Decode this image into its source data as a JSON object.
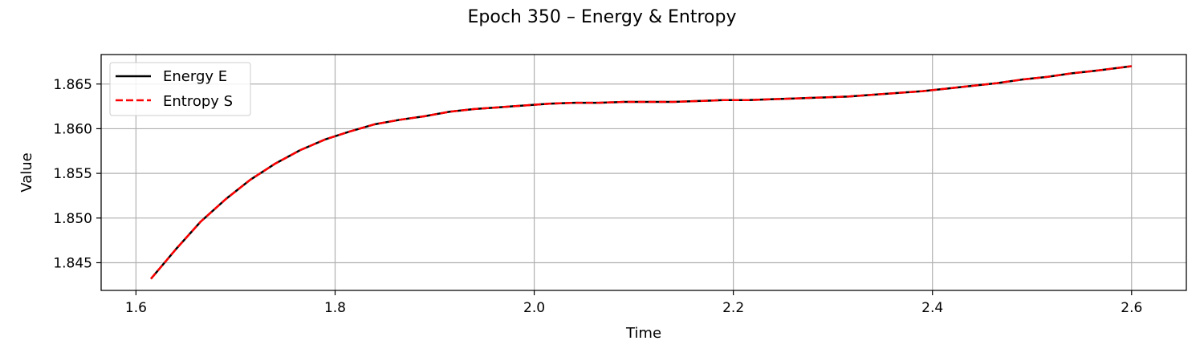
{
  "chart_data": {
    "type": "line",
    "title": "Epoch 350 – Energy & Entropy",
    "xlabel": "Time",
    "ylabel": "Value",
    "xlim": [
      1.565,
      2.655
    ],
    "ylim": [
      1.8419,
      1.8683
    ],
    "xticks": [
      1.6,
      1.8,
      2.0,
      2.2,
      2.4,
      2.6
    ],
    "xtick_labels": [
      "1.6",
      "1.8",
      "2.0",
      "2.2",
      "2.4",
      "2.6"
    ],
    "yticks": [
      1.845,
      1.85,
      1.855,
      1.86,
      1.865
    ],
    "ytick_labels": [
      "1.845",
      "1.850",
      "1.855",
      "1.860",
      "1.865"
    ],
    "grid": true,
    "legend_position": "upper-left",
    "series": [
      {
        "name": "Energy E",
        "color": "#000000",
        "style": "solid",
        "x": [
          1.615,
          1.64,
          1.665,
          1.69,
          1.715,
          1.74,
          1.765,
          1.79,
          1.815,
          1.84,
          1.865,
          1.89,
          1.915,
          1.94,
          1.965,
          1.99,
          2.015,
          2.04,
          2.065,
          2.09,
          2.115,
          2.14,
          2.165,
          2.19,
          2.215,
          2.24,
          2.265,
          2.29,
          2.315,
          2.34,
          2.365,
          2.39,
          2.415,
          2.44,
          2.465,
          2.49,
          2.515,
          2.54,
          2.565,
          2.6
        ],
        "y": [
          1.8432,
          1.8465,
          1.8496,
          1.8521,
          1.8543,
          1.8561,
          1.8576,
          1.8588,
          1.8597,
          1.8605,
          1.861,
          1.8614,
          1.8619,
          1.8622,
          1.8624,
          1.8626,
          1.8628,
          1.8629,
          1.8629,
          1.863,
          1.863,
          1.863,
          1.8631,
          1.8632,
          1.8632,
          1.8633,
          1.8634,
          1.8635,
          1.8636,
          1.8638,
          1.864,
          1.8642,
          1.8645,
          1.8648,
          1.8651,
          1.8655,
          1.8658,
          1.8662,
          1.8665,
          1.867
        ]
      },
      {
        "name": "Entropy S",
        "color": "#ff0000",
        "style": "dashed",
        "x": [
          1.615,
          1.64,
          1.665,
          1.69,
          1.715,
          1.74,
          1.765,
          1.79,
          1.815,
          1.84,
          1.865,
          1.89,
          1.915,
          1.94,
          1.965,
          1.99,
          2.015,
          2.04,
          2.065,
          2.09,
          2.115,
          2.14,
          2.165,
          2.19,
          2.215,
          2.24,
          2.265,
          2.29,
          2.315,
          2.34,
          2.365,
          2.39,
          2.415,
          2.44,
          2.465,
          2.49,
          2.515,
          2.54,
          2.565,
          2.6
        ],
        "y": [
          1.8432,
          1.8465,
          1.8496,
          1.8521,
          1.8543,
          1.8561,
          1.8576,
          1.8588,
          1.8597,
          1.8605,
          1.861,
          1.8614,
          1.8619,
          1.8622,
          1.8624,
          1.8626,
          1.8628,
          1.8629,
          1.8629,
          1.863,
          1.863,
          1.863,
          1.8631,
          1.8632,
          1.8632,
          1.8633,
          1.8634,
          1.8635,
          1.8636,
          1.8638,
          1.864,
          1.8642,
          1.8645,
          1.8648,
          1.8651,
          1.8655,
          1.8658,
          1.8662,
          1.8665,
          1.867
        ]
      }
    ],
    "colors": {
      "grid": "#b0b0b0",
      "axes": "#000000",
      "legend_border": "#cccccc"
    }
  }
}
